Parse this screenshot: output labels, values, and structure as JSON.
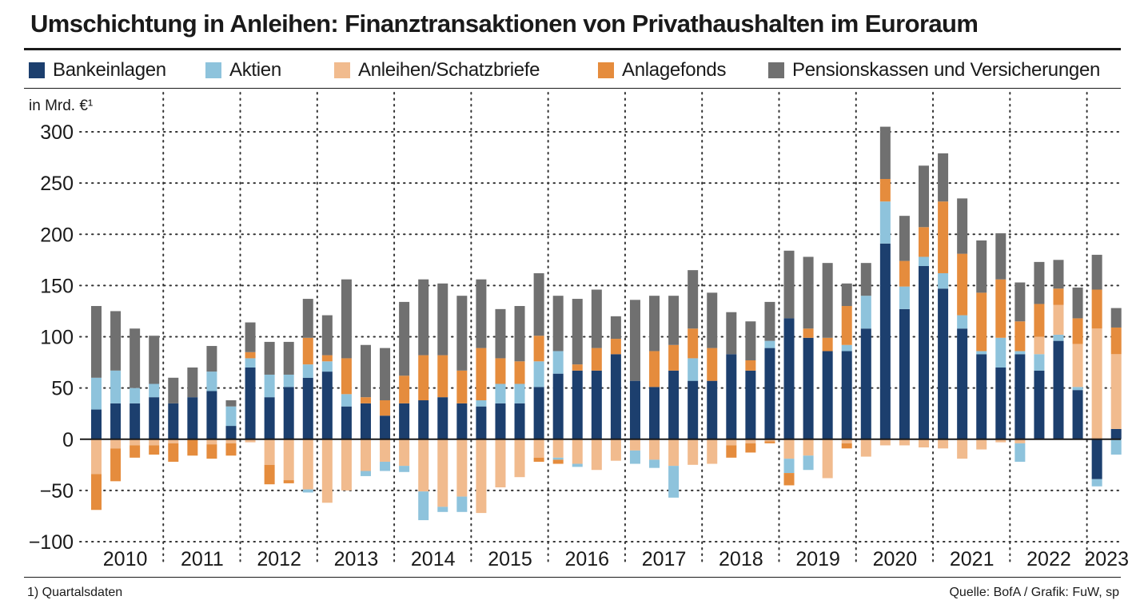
{
  "title": "Umschichtung in Anleihen: Finanztransaktionen von Privathaushalten im Euroraum",
  "unit_label": "in Mrd. €¹",
  "footnote": "1) Quartalsdaten",
  "source": "Quelle: BofA / Grafik: FuW, sp",
  "colors": {
    "Bankeinlagen": "#1c3f6e",
    "Aktien": "#8ec3dc",
    "Anleihen/Schatzbriefe": "#f1bb8e",
    "Anlagefonds": "#e58c3d",
    "Pensionskassen und Versicherungen": "#707070"
  },
  "chart_data": {
    "type": "bar",
    "stacked": true,
    "title": "Umschichtung in Anleihen: Finanztransaktionen von Privathaushalten im Euroraum",
    "ylabel": "in Mrd. €¹",
    "xlabel": "",
    "ylim": [
      -100,
      300
    ],
    "yticks": [
      300,
      250,
      200,
      150,
      100,
      50,
      0,
      -50,
      -100
    ],
    "ytick_labels": [
      "300",
      "250",
      "200",
      "150",
      "100",
      "50",
      "0",
      "−50",
      "−100"
    ],
    "legend_position": "top",
    "years": [
      "2010",
      "2011",
      "2012",
      "2013",
      "2014",
      "2015",
      "2016",
      "2017",
      "2018",
      "2019",
      "2020",
      "2021",
      "2022",
      "2023"
    ],
    "quarters_per_year": [
      4,
      4,
      4,
      4,
      4,
      4,
      4,
      4,
      4,
      4,
      4,
      4,
      4,
      2
    ],
    "categories": [
      "Q1 2010",
      "Q2 2010",
      "Q3 2010",
      "Q4 2010",
      "Q1 2011",
      "Q2 2011",
      "Q3 2011",
      "Q4 2011",
      "Q1 2012",
      "Q2 2012",
      "Q3 2012",
      "Q4 2012",
      "Q1 2013",
      "Q2 2013",
      "Q3 2013",
      "Q4 2013",
      "Q1 2014",
      "Q2 2014",
      "Q3 2014",
      "Q4 2014",
      "Q1 2015",
      "Q2 2015",
      "Q3 2015",
      "Q4 2015",
      "Q1 2016",
      "Q2 2016",
      "Q3 2016",
      "Q4 2016",
      "Q1 2017",
      "Q2 2017",
      "Q3 2017",
      "Q4 2017",
      "Q1 2018",
      "Q2 2018",
      "Q3 2018",
      "Q4 2018",
      "Q1 2019",
      "Q2 2019",
      "Q3 2019",
      "Q4 2019",
      "Q1 2020",
      "Q2 2020",
      "Q3 2020",
      "Q4 2020",
      "Q1 2021",
      "Q2 2021",
      "Q3 2021",
      "Q4 2021",
      "Q1 2022",
      "Q2 2022",
      "Q3 2022",
      "Q4 2022",
      "Q1 2023",
      "Q2 2023"
    ],
    "series": [
      {
        "name": "Bankeinlagen",
        "values": [
          29,
          35,
          35,
          41,
          35,
          41,
          47,
          13,
          70,
          41,
          51,
          60,
          66,
          32,
          35,
          23,
          35,
          38,
          41,
          35,
          32,
          35,
          35,
          51,
          64,
          67,
          67,
          83,
          57,
          51,
          67,
          57,
          57,
          83,
          67,
          89,
          118,
          99,
          86,
          86,
          108,
          191,
          127,
          169,
          147,
          108,
          83,
          70,
          83,
          67,
          96,
          48,
          -39,
          10
        ]
      },
      {
        "name": "Aktien",
        "values": [
          31,
          32,
          15,
          13,
          0,
          0,
          19,
          19,
          9,
          22,
          12,
          13,
          10,
          12,
          0,
          0,
          0,
          0,
          0,
          0,
          6,
          19,
          19,
          25,
          22,
          0,
          0,
          0,
          0,
          0,
          0,
          22,
          0,
          0,
          0,
          7,
          0,
          0,
          0,
          6,
          32,
          41,
          22,
          9,
          15,
          13,
          3,
          29,
          3,
          16,
          6,
          3,
          -7,
          -15
        ]
      },
      {
        "name": "Anleihen/Schatzbriefe",
        "values": [
          -34,
          -9,
          -6,
          -6,
          -4,
          0,
          -5,
          -4,
          -3,
          -25,
          -40,
          -49,
          -62,
          -50,
          -31,
          -22,
          -26,
          -51,
          -66,
          -56,
          -72,
          -47,
          -37,
          -18,
          -18,
          -24,
          -30,
          -21,
          -11,
          -20,
          -26,
          -25,
          -24,
          -6,
          -4,
          -2,
          -19,
          -16,
          -38,
          -4,
          -17,
          -6,
          -6,
          -8,
          -9,
          -19,
          -10,
          -3,
          -4,
          17,
          29,
          42,
          108,
          73
        ]
      },
      {
        "name": "Anlagefonds",
        "values": [
          -35,
          -32,
          -12,
          -9,
          -18,
          -16,
          -14,
          -12,
          6,
          -19,
          -3,
          26,
          6,
          35,
          6,
          15,
          27,
          44,
          41,
          32,
          51,
          25,
          22,
          25,
          0,
          6,
          22,
          15,
          0,
          35,
          25,
          29,
          32,
          0,
          10,
          0,
          0,
          9,
          13,
          38,
          0,
          22,
          25,
          29,
          70,
          60,
          57,
          57,
          29,
          32,
          16,
          25,
          38,
          26
        ]
      },
      {
        "name": "Pensionskassen und Versicherungen",
        "values": [
          70,
          58,
          58,
          47,
          25,
          29,
          25,
          6,
          29,
          32,
          32,
          38,
          39,
          77,
          51,
          51,
          72,
          74,
          70,
          73,
          67,
          48,
          54,
          61,
          54,
          64,
          57,
          22,
          79,
          54,
          48,
          57,
          54,
          41,
          38,
          38,
          66,
          70,
          73,
          22,
          32,
          51,
          44,
          60,
          47,
          54,
          51,
          45,
          38,
          41,
          28,
          30,
          34,
          19
        ]
      },
      {
        "name": "Aktien_neg",
        "values": [
          0,
          0,
          0,
          0,
          0,
          0,
          0,
          0,
          0,
          0,
          0,
          -3,
          0,
          0,
          -5,
          -9,
          -6,
          -28,
          -5,
          -15,
          0,
          0,
          0,
          0,
          -2,
          -3,
          0,
          0,
          -13,
          -8,
          -31,
          0,
          0,
          0,
          0,
          0,
          -14,
          -14,
          0,
          0,
          0,
          0,
          0,
          0,
          0,
          0,
          0,
          0,
          -18,
          0,
          0,
          0,
          0,
          0
        ]
      },
      {
        "name": "Anlagefonds_neg",
        "values": [
          0,
          0,
          0,
          0,
          0,
          0,
          0,
          0,
          0,
          0,
          0,
          0,
          0,
          0,
          0,
          0,
          0,
          0,
          0,
          0,
          0,
          0,
          0,
          -4,
          -4,
          0,
          0,
          0,
          0,
          0,
          0,
          0,
          0,
          -12,
          -9,
          -2,
          -12,
          0,
          0,
          -5,
          0,
          0,
          0,
          0,
          0,
          0,
          0,
          0,
          0,
          0,
          0,
          0,
          0,
          0
        ]
      }
    ]
  },
  "legend": [
    {
      "label": "Bankeinlagen",
      "color": "#1c3f6e"
    },
    {
      "label": "Aktien",
      "color": "#8ec3dc"
    },
    {
      "label": "Anleihen/Schatzbriefe",
      "color": "#f1bb8e"
    },
    {
      "label": "Anlagefonds",
      "color": "#e58c3d"
    },
    {
      "label": "Pensionskassen und Versicherungen",
      "color": "#707070"
    }
  ]
}
